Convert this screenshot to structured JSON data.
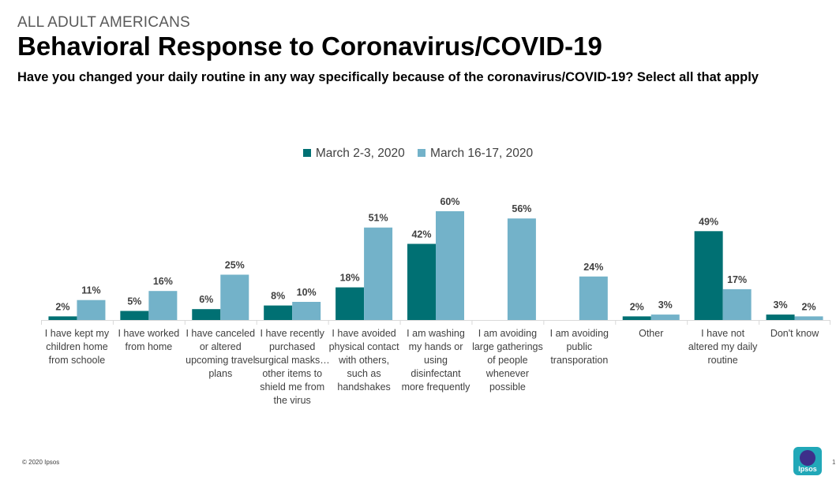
{
  "header": {
    "kicker": "ALL ADULT AMERICANS",
    "title": "Behavioral Response to Coronavirus/COVID-19",
    "subtitle": "Have you changed your daily routine in any way specifically because of the coronavirus/COVID-19? Select all that apply"
  },
  "colors": {
    "series_a": "#007073",
    "series_b": "#73b2c9",
    "axis": "#d9d9d9",
    "label": "#404040"
  },
  "chart_data": {
    "type": "bar",
    "title": "Behavioral Response to Coronavirus/COVID-19",
    "xlabel": "",
    "ylabel": "",
    "ylim": [
      0,
      60
    ],
    "grid": false,
    "legend": "top-center",
    "categories": [
      [
        "I have kept my",
        "children home",
        "from schoole"
      ],
      [
        "I have worked",
        "from home"
      ],
      [
        "I have canceled",
        "or altered",
        "upcoming travel",
        "plans"
      ],
      [
        "I have recently",
        "purchased",
        "surgical masks…",
        "other items to",
        "shield me from",
        "the virus"
      ],
      [
        "I have avoided",
        "physical contact",
        "with others,",
        "such as",
        "handshakes"
      ],
      [
        "I am washing",
        "my hands or",
        "using",
        "disinfectant",
        "more frequently"
      ],
      [
        "I am avoiding",
        "large gatherings",
        "of people",
        "whenever",
        "possible"
      ],
      [
        "I am avoiding",
        "public",
        "transporation"
      ],
      [
        "Other"
      ],
      [
        "I have not",
        "altered my daily",
        "routine"
      ],
      [
        "Don't know"
      ]
    ],
    "series": [
      {
        "name": "March 2-3, 2020",
        "values": [
          2,
          5,
          6,
          8,
          18,
          42,
          null,
          null,
          2,
          49,
          3
        ],
        "labels": [
          "2%",
          "5%",
          "6%",
          "8%",
          "18%",
          "42%",
          "",
          "",
          "2%",
          "49%",
          "3%"
        ]
      },
      {
        "name": "March 16-17, 2020",
        "values": [
          11,
          16,
          25,
          10,
          51,
          60,
          56,
          24,
          3,
          17,
          2
        ],
        "labels": [
          "11%",
          "16%",
          "25%",
          "10%",
          "51%",
          "60%",
          "56%",
          "24%",
          "3%",
          "17%",
          "2%"
        ]
      }
    ]
  },
  "footer": {
    "copyright": "© 2020 Ipsos",
    "logo_text": "Ipsos",
    "page": "1"
  }
}
